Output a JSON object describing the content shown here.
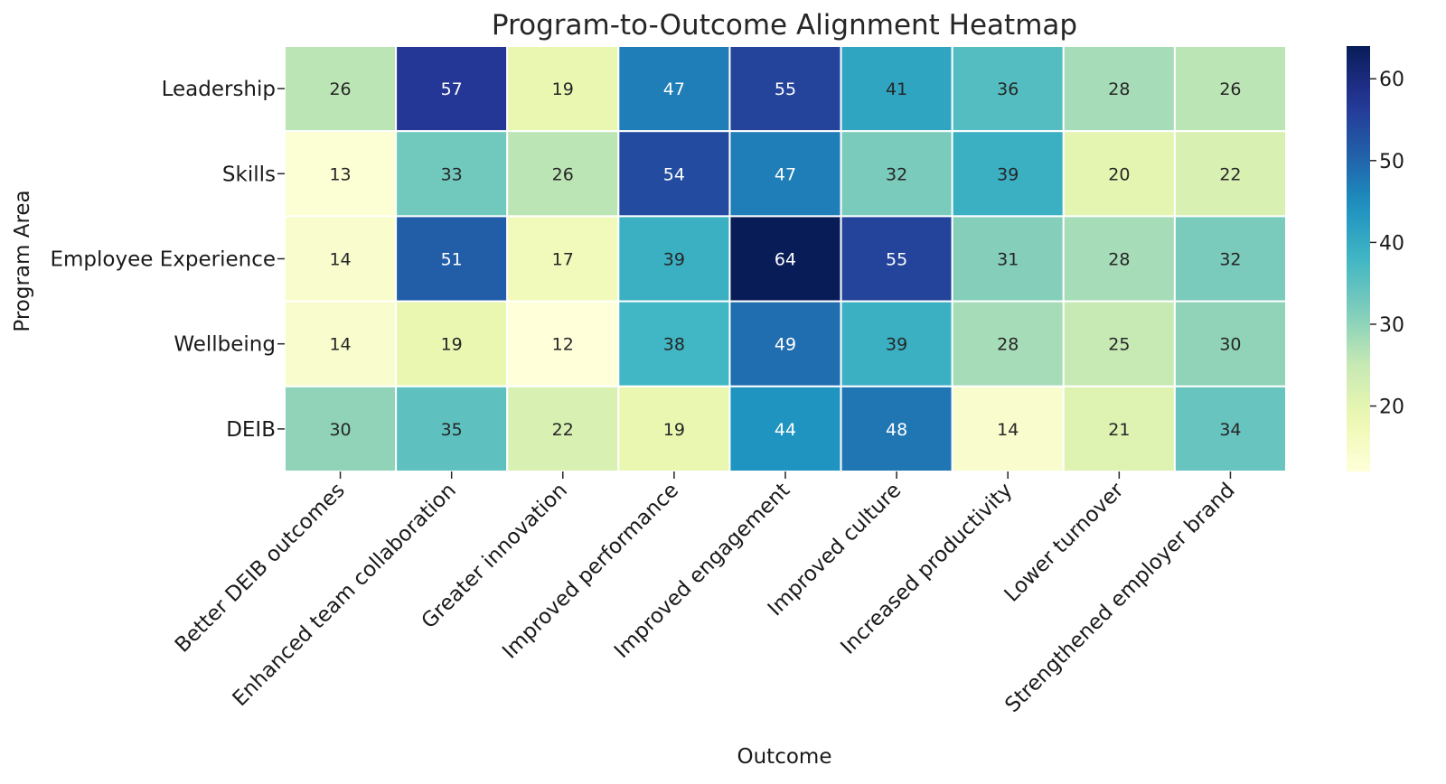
{
  "chart_data": {
    "type": "heatmap",
    "title": "Program-to-Outcome Alignment Heatmap",
    "xlabel": "Outcome",
    "ylabel": "Program Area",
    "rows": [
      "Leadership",
      "Skills",
      "Employee Experience",
      "Wellbeing",
      "DEIB"
    ],
    "columns": [
      "Better DEIB outcomes",
      "Enhanced team collaboration",
      "Greater innovation",
      "Improved performance",
      "Improved engagement",
      "Improved culture",
      "Increased productivity",
      "Lower turnover",
      "Strengthened employer brand"
    ],
    "values": [
      [
        26,
        57,
        19,
        47,
        55,
        41,
        36,
        28,
        26
      ],
      [
        13,
        33,
        26,
        54,
        47,
        32,
        39,
        20,
        22
      ],
      [
        14,
        51,
        17,
        39,
        64,
        55,
        31,
        28,
        32
      ],
      [
        14,
        19,
        12,
        38,
        49,
        39,
        28,
        25,
        30
      ],
      [
        30,
        35,
        22,
        19,
        44,
        48,
        14,
        21,
        34
      ]
    ],
    "colormap": "YlGnBu",
    "vmin": 12,
    "vmax": 64,
    "colorbar_ticks": [
      20,
      30,
      40,
      50,
      60
    ],
    "annotated": true
  }
}
